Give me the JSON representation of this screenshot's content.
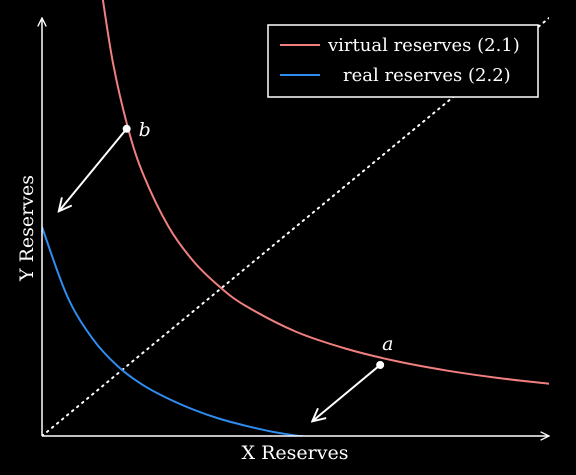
{
  "chart_data": {
    "type": "line",
    "title": "",
    "xlabel": "X Reserves",
    "ylabel": "Y Reserves",
    "xlim": [
      0,
      10
    ],
    "ylim": [
      0,
      8
    ],
    "grid": false,
    "legend_position": "top-right",
    "series": [
      {
        "name": "virtual reserves (2.1)",
        "color": "#f07f7f",
        "x": [
          1.17,
          1.4,
          1.7,
          2.0,
          2.5,
          3.0,
          3.5,
          4.0,
          5.0,
          6.0,
          7.0,
          8.0,
          9.0,
          10.0
        ],
        "y": [
          8.55,
          7.14,
          5.88,
          5.0,
          4.0,
          3.33,
          2.86,
          2.5,
          2.0,
          1.67,
          1.43,
          1.25,
          1.11,
          1.0
        ]
      },
      {
        "name": "real reserves (2.2)",
        "color": "#2f8cf0",
        "x": [
          0,
          0.5,
          1.0,
          1.5,
          2.0,
          2.5,
          3.0,
          3.5,
          4.0,
          4.5,
          5.0,
          5.13
        ],
        "y": [
          4.0,
          2.67,
          1.86,
          1.33,
          0.97,
          0.71,
          0.5,
          0.33,
          0.2,
          0.09,
          0.01,
          0.0
        ]
      }
    ],
    "reference_line": {
      "style": "dotted",
      "x": [
        0,
        10
      ],
      "y": [
        0,
        8
      ]
    },
    "annotations": [
      {
        "label": "b",
        "x": 1.67,
        "y": 5.88,
        "arrow_to": [
          0.33,
          4.3
        ]
      },
      {
        "label": "a",
        "x": 6.67,
        "y": 1.36,
        "arrow_to": [
          5.33,
          0.28
        ]
      }
    ]
  }
}
